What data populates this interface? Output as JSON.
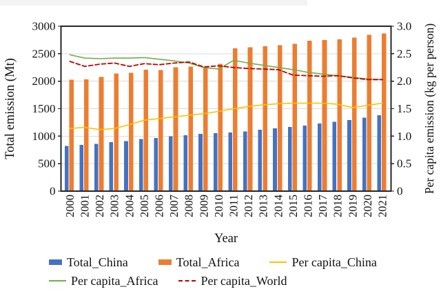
{
  "figure": {
    "left_axis_title": "Total emission (Mt)",
    "right_axis_title": "Per capita emission (kg per person)",
    "x_axis_title": "Year",
    "left_tick_labels": [
      "0",
      "500",
      "1000",
      "1500",
      "2000",
      "2500",
      "3000"
    ],
    "right_tick_labels": [
      "0",
      "0.5",
      "1.0",
      "1.5",
      "2.0",
      "2.5",
      "3.0"
    ]
  },
  "chart_data": {
    "type": "bar",
    "subtype": "combo-bar-line-dual-axis",
    "title": "",
    "xlabel": "Year",
    "ylabel_left": "Total emission (Mt)",
    "ylabel_right": "Per capita emission (kg per person)",
    "ylim_left": [
      0,
      3000
    ],
    "ylim_right": [
      0,
      3.0
    ],
    "ytick_step_left": 500,
    "ytick_step_right": 0.5,
    "grid": "horizontal-light",
    "legend_position": "bottom",
    "categories": [
      "2000",
      "2001",
      "2002",
      "2003",
      "2004",
      "2005",
      "2006",
      "2007",
      "2008",
      "2009",
      "2010",
      "2011",
      "2012",
      "2013",
      "2014",
      "2015",
      "2016",
      "2017",
      "2018",
      "2019",
      "2020",
      "2021"
    ],
    "series": [
      {
        "name": "Total_China",
        "type": "bar",
        "axis": "left",
        "color": "#4472C4",
        "dashed": false,
        "values": [
          820,
          840,
          862,
          890,
          912,
          945,
          968,
          998,
          1018,
          1042,
          1055,
          1068,
          1088,
          1115,
          1140,
          1168,
          1195,
          1228,
          1262,
          1292,
          1338,
          1382
        ]
      },
      {
        "name": "Total_Africa",
        "type": "bar",
        "axis": "left",
        "color": "#ED7D31",
        "dashed": false,
        "values": [
          2028,
          2035,
          2080,
          2140,
          2152,
          2208,
          2200,
          2252,
          2268,
          2245,
          2318,
          2600,
          2615,
          2638,
          2652,
          2680,
          2735,
          2750,
          2762,
          2795,
          2840,
          2868
        ]
      },
      {
        "name": "Per capita_China",
        "type": "line",
        "axis": "right",
        "color": "#FFC000",
        "dashed": false,
        "values": [
          1.14,
          1.16,
          1.12,
          1.14,
          1.21,
          1.29,
          1.32,
          1.35,
          1.38,
          1.41,
          1.45,
          1.5,
          1.54,
          1.57,
          1.59,
          1.6,
          1.6,
          1.6,
          1.58,
          1.52,
          1.56,
          1.6
        ]
      },
      {
        "name": "Per capita_Africa",
        "type": "line",
        "axis": "right",
        "color": "#70AD47",
        "dashed": false,
        "values": [
          2.48,
          2.42,
          2.41,
          2.42,
          2.42,
          2.43,
          2.4,
          2.37,
          2.33,
          2.25,
          2.22,
          2.38,
          2.33,
          2.29,
          2.25,
          2.21,
          2.16,
          2.13,
          2.1,
          2.07,
          2.04,
          2.03
        ]
      },
      {
        "name": "Per capita_World",
        "type": "line",
        "axis": "right",
        "color": "#C00000",
        "dashed": true,
        "values": [
          2.36,
          2.27,
          2.31,
          2.33,
          2.27,
          2.32,
          2.3,
          2.33,
          2.35,
          2.26,
          2.28,
          2.25,
          2.23,
          2.22,
          2.21,
          2.11,
          2.1,
          2.09,
          2.1,
          2.06,
          2.03,
          2.03
        ]
      }
    ],
    "colors": {
      "grid": "#DADADA",
      "plot_border": "#262626",
      "text": "#111111"
    }
  }
}
